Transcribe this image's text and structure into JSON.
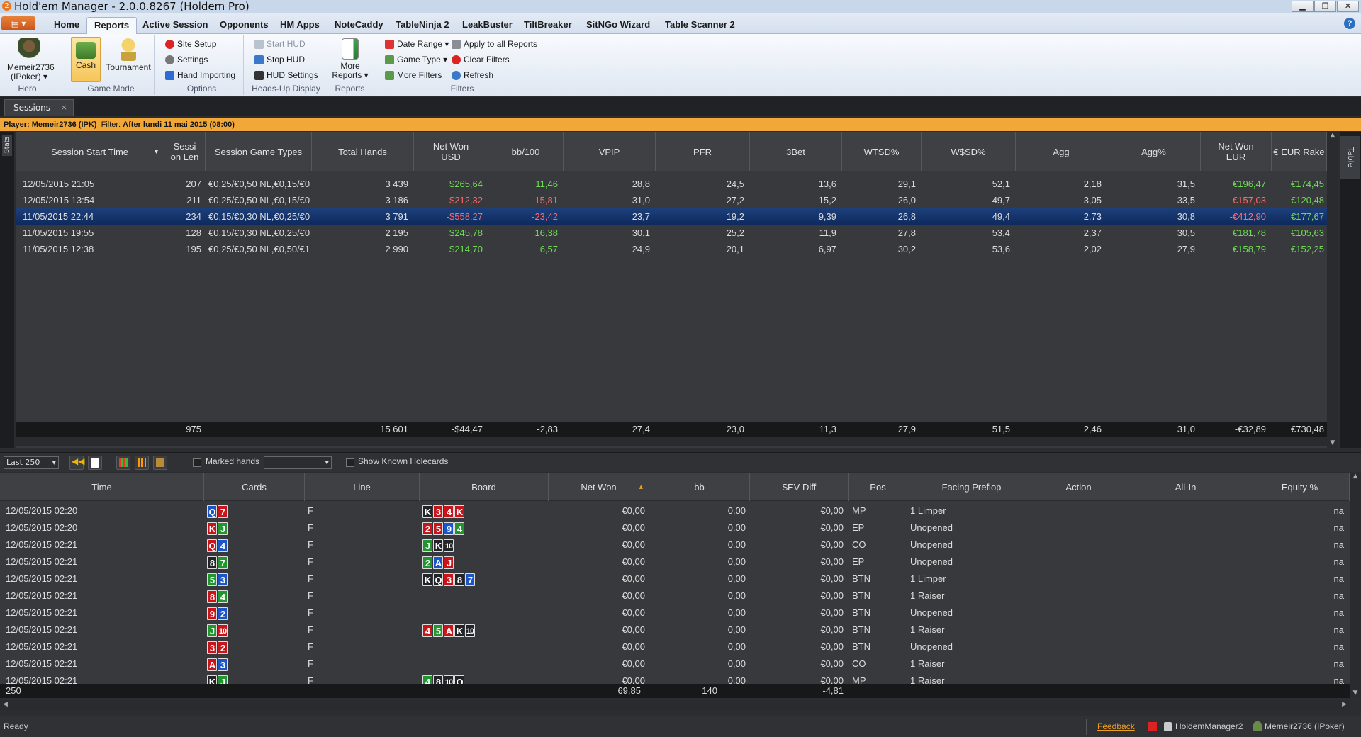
{
  "window": {
    "title": "Hold'em Manager - 2.0.0.8267 (Holdem Pro)",
    "app_icon": "2"
  },
  "menu": {
    "tabs": [
      "Home",
      "Reports",
      "Active Session",
      "Opponents",
      "HM Apps",
      "NoteCaddy",
      "TableNinja 2",
      "LeakBuster",
      "TiltBreaker",
      "SitNGo Wizard",
      "Table Scanner 2"
    ],
    "active": "Reports"
  },
  "ribbon": {
    "hero": {
      "line1": "Memeir2736",
      "line2": "(IPoker) ▾",
      "label": "Hero"
    },
    "game_mode": {
      "cash": "Cash",
      "tournament": "Tournament",
      "label": "Game Mode"
    },
    "options": {
      "site_setup": "Site Setup",
      "settings": "Settings",
      "hand_importing": "Hand Importing",
      "label": "Options"
    },
    "hud": {
      "start": "Start HUD",
      "stop": "Stop HUD",
      "settings": "HUD Settings",
      "label": "Heads-Up Display"
    },
    "reports": {
      "more1": "More",
      "more2": "Reports ▾",
      "label": "Reports"
    },
    "filters": {
      "date_range": "Date Range ▾",
      "apply_all": "Apply to all Reports",
      "game_type": "Game Type ▾",
      "clear": "Clear Filters",
      "more": "More Filters",
      "refresh": "Refresh",
      "label": "Filters"
    }
  },
  "tabs": {
    "sessions": "Sessions",
    "close": "×"
  },
  "filterbar": {
    "player_label": "Player:",
    "player": "Memeir2736 (IPK)",
    "filter_label": "Filter:",
    "filter": "After lundi 11 mai 2015 (08:00)"
  },
  "side": {
    "stats": "Stats",
    "table": "Table"
  },
  "sessions": {
    "headers": [
      "Session Start Time",
      "Sessi on Len",
      "Session Game Types",
      "Total Hands",
      "Net Won USD",
      "bb/100",
      "VPIP",
      "PFR",
      "3Bet",
      "WTSD%",
      "W$SD%",
      "Agg",
      "Agg%",
      "Net Won EUR",
      "€ EUR Rake"
    ],
    "rows": [
      [
        "12/05/2015 21:05",
        "207",
        "€0,25/€0,50 NL,€0,15/€0",
        "3 439",
        "$265,64",
        "11,46",
        "28,8",
        "24,5",
        "13,6",
        "29,1",
        "52,1",
        "2,18",
        "31,5",
        "€196,47",
        "€174,45"
      ],
      [
        "12/05/2015 13:54",
        "211",
        "€0,25/€0,50 NL,€0,15/€0",
        "3 186",
        "-$212,32",
        "-15,81",
        "31,0",
        "27,2",
        "15,2",
        "26,0",
        "49,7",
        "3,05",
        "33,5",
        "-€157,03",
        "€120,48"
      ],
      [
        "11/05/2015 22:44",
        "234",
        "€0,15/€0,30 NL,€0,25/€0",
        "3 791",
        "-$558,27",
        "-23,42",
        "23,7",
        "19,2",
        "9,39",
        "26,8",
        "49,4",
        "2,73",
        "30,8",
        "-€412,90",
        "€177,67"
      ],
      [
        "11/05/2015 19:55",
        "128",
        "€0,15/€0,30 NL,€0,25/€0",
        "2 195",
        "$245,78",
        "16,38",
        "30,1",
        "25,2",
        "11,9",
        "27,8",
        "53,4",
        "2,37",
        "30,5",
        "€181,78",
        "€105,63"
      ],
      [
        "11/05/2015 12:38",
        "195",
        "€0,25/€0,50 NL,€0,50/€1",
        "2 990",
        "$214,70",
        "6,57",
        "24,9",
        "20,1",
        "6,97",
        "30,2",
        "53,6",
        "2,02",
        "27,9",
        "€158,79",
        "€152,25"
      ]
    ],
    "selected_index": 2,
    "totals": [
      "",
      "975",
      "",
      "15 601",
      "-$44,47",
      "-2,83",
      "27,4",
      "23,0",
      "11,3",
      "27,9",
      "51,5",
      "2,46",
      "31,0",
      "-€32,89",
      "€730,48"
    ]
  },
  "hands_toolbar": {
    "range": "Last 250",
    "marked": "Marked hands",
    "known": "Show Known Holecards"
  },
  "hands": {
    "headers": [
      "Time",
      "Cards",
      "Line",
      "Board",
      "Net Won",
      "bb",
      "$EV Diff",
      "Pos",
      "Facing Preflop",
      "Action",
      "All-In",
      "Equity %"
    ],
    "rows": [
      {
        "time": "12/05/2015 02:20",
        "cards": [
          [
            "Q",
            "d"
          ],
          [
            "7",
            "h"
          ]
        ],
        "line": "F",
        "board": [
          [
            "K",
            "s"
          ],
          [
            "3",
            "h"
          ],
          [
            "4",
            "h"
          ],
          [
            "K",
            "h"
          ]
        ],
        "net": "€0,00",
        "bb": "0,00",
        "ev": "€0,00",
        "pos": "MP",
        "facing": "1 Limper",
        "eq": "na"
      },
      {
        "time": "12/05/2015 02:20",
        "cards": [
          [
            "K",
            "h"
          ],
          [
            "J",
            "c"
          ]
        ],
        "line": "F",
        "board": [
          [
            "2",
            "h"
          ],
          [
            "5",
            "h"
          ],
          [
            "9",
            "d"
          ],
          [
            "4",
            "c"
          ]
        ],
        "net": "€0,00",
        "bb": "0,00",
        "ev": "€0,00",
        "pos": "EP",
        "facing": "Unopened",
        "eq": "na"
      },
      {
        "time": "12/05/2015 02:21",
        "cards": [
          [
            "Q",
            "h"
          ],
          [
            "4",
            "d"
          ]
        ],
        "line": "F",
        "board": [
          [
            "J",
            "c"
          ],
          [
            "K",
            "s"
          ],
          [
            "10",
            "s"
          ]
        ],
        "net": "€0,00",
        "bb": "0,00",
        "ev": "€0,00",
        "pos": "CO",
        "facing": "Unopened",
        "eq": "na"
      },
      {
        "time": "12/05/2015 02:21",
        "cards": [
          [
            "8",
            "s"
          ],
          [
            "7",
            "c"
          ]
        ],
        "line": "F",
        "board": [
          [
            "2",
            "c"
          ],
          [
            "A",
            "d"
          ],
          [
            "J",
            "h"
          ]
        ],
        "net": "€0,00",
        "bb": "0,00",
        "ev": "€0,00",
        "pos": "EP",
        "facing": "Unopened",
        "eq": "na"
      },
      {
        "time": "12/05/2015 02:21",
        "cards": [
          [
            "5",
            "c"
          ],
          [
            "3",
            "d"
          ]
        ],
        "line": "F",
        "board": [
          [
            "K",
            "s"
          ],
          [
            "Q",
            "s"
          ],
          [
            "3",
            "h"
          ],
          [
            "8",
            "s"
          ],
          [
            "7",
            "d"
          ]
        ],
        "net": "€0,00",
        "bb": "0,00",
        "ev": "€0,00",
        "pos": "BTN",
        "facing": "1 Limper",
        "eq": "na"
      },
      {
        "time": "12/05/2015 02:21",
        "cards": [
          [
            "8",
            "h"
          ],
          [
            "4",
            "c"
          ]
        ],
        "line": "F",
        "board": [],
        "net": "€0,00",
        "bb": "0,00",
        "ev": "€0,00",
        "pos": "BTN",
        "facing": "1 Raiser",
        "eq": "na"
      },
      {
        "time": "12/05/2015 02:21",
        "cards": [
          [
            "9",
            "h"
          ],
          [
            "2",
            "d"
          ]
        ],
        "line": "F",
        "board": [],
        "net": "€0,00",
        "bb": "0,00",
        "ev": "€0,00",
        "pos": "BTN",
        "facing": "Unopened",
        "eq": "na"
      },
      {
        "time": "12/05/2015 02:21",
        "cards": [
          [
            "J",
            "c"
          ],
          [
            "10",
            "h"
          ]
        ],
        "line": "F",
        "board": [
          [
            "4",
            "h"
          ],
          [
            "5",
            "c"
          ],
          [
            "A",
            "h"
          ],
          [
            "K",
            "s"
          ],
          [
            "10",
            "s"
          ]
        ],
        "net": "€0,00",
        "bb": "0,00",
        "ev": "€0,00",
        "pos": "BTN",
        "facing": "1 Raiser",
        "eq": "na"
      },
      {
        "time": "12/05/2015 02:21",
        "cards": [
          [
            "3",
            "h"
          ],
          [
            "2",
            "h"
          ]
        ],
        "line": "F",
        "board": [],
        "net": "€0,00",
        "bb": "0,00",
        "ev": "€0,00",
        "pos": "BTN",
        "facing": "Unopened",
        "eq": "na"
      },
      {
        "time": "12/05/2015 02:21",
        "cards": [
          [
            "A",
            "h"
          ],
          [
            "3",
            "d"
          ]
        ],
        "line": "F",
        "board": [],
        "net": "€0,00",
        "bb": "0,00",
        "ev": "€0,00",
        "pos": "CO",
        "facing": "1 Raiser",
        "eq": "na"
      },
      {
        "time": "12/05/2015 02:21",
        "cards": [
          [
            "K",
            "s"
          ],
          [
            "J",
            "c"
          ]
        ],
        "line": "F",
        "board": [
          [
            "4",
            "c"
          ],
          [
            "8",
            "s"
          ],
          [
            "10",
            "s"
          ],
          [
            "Q",
            "s"
          ]
        ],
        "net": "€0,00",
        "bb": "0,00",
        "ev": "€0,00",
        "pos": "MP",
        "facing": "1 Raiser",
        "eq": "na"
      }
    ],
    "totals": {
      "count": "250",
      "net": "69,85",
      "bb": "140",
      "ev": "-4,81"
    }
  },
  "statusbar": {
    "ready": "Ready",
    "feedback": "Feedback",
    "app": "HoldemManager2",
    "user": "Memeir2736 (IPoker)"
  },
  "colors": {
    "positive": "#6fdc56",
    "negative": "#ff6a6a",
    "selected_row": "#0e2a5e",
    "filter_bar": "#f2a838"
  }
}
